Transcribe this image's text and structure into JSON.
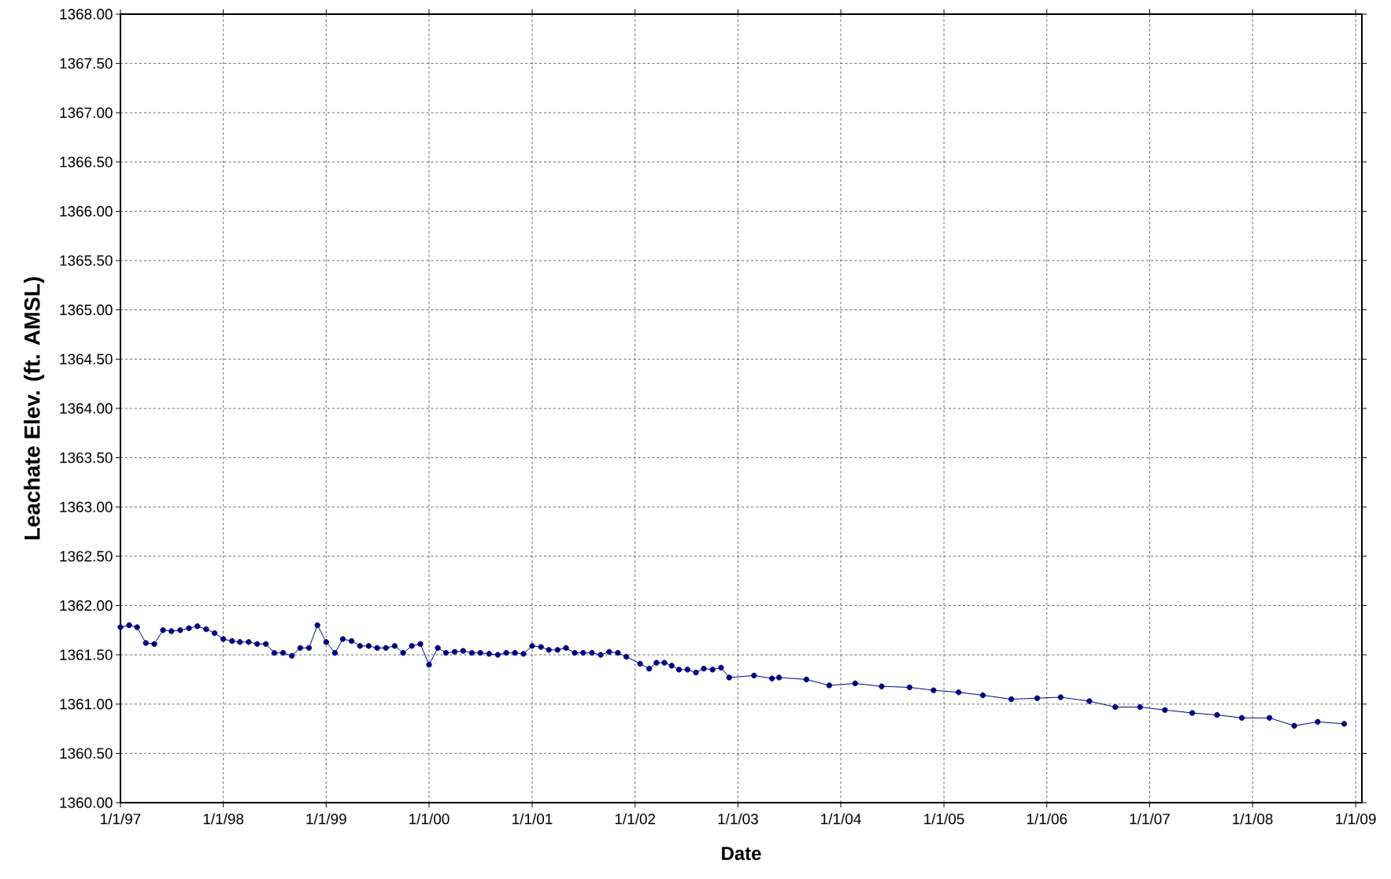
{
  "chart_data": {
    "type": "line",
    "xlabel": "Date",
    "ylabel": "Leachate Elev. (ft. AMSL)",
    "x": [
      "1997-01",
      "1997-02",
      "1997-03",
      "1997-04",
      "1997-05",
      "1997-06",
      "1997-07",
      "1997-08",
      "1997-09",
      "1997-10",
      "1997-11",
      "1997-12",
      "1998-01",
      "1998-02",
      "1998-03",
      "1998-04",
      "1998-05",
      "1998-06",
      "1998-07",
      "1998-08",
      "1998-09",
      "1998-10",
      "1998-11",
      "1998-12",
      "1999-01",
      "1999-02",
      "1999-03",
      "1999-04",
      "1999-05",
      "1999-06",
      "1999-07",
      "1999-08",
      "1999-09",
      "1999-10",
      "1999-11",
      "1999-12",
      "2000-01",
      "2000-02",
      "2000-03",
      "2000-04",
      "2000-05",
      "2000-06",
      "2000-07",
      "2000-08",
      "2000-09",
      "2000-10",
      "2000-11",
      "2000-12",
      "2001-01",
      "2001-02",
      "2001-03",
      "2001-04",
      "2001-05",
      "2001-06",
      "2001-07",
      "2001-08",
      "2001-09",
      "2001-10",
      "2001-11",
      "2001-12",
      "2002-01-19",
      "2002-02-20",
      "2002-03-18",
      "2002-04-15",
      "2002-05-11",
      "2002-06-06",
      "2002-07-06",
      "2002-08-05",
      "2002-09-02",
      "2002-10-03",
      "2002-11-02",
      "2002-12-01",
      "2003-02-27",
      "2003-05-02",
      "2003-05-27",
      "2003-09-01",
      "2003-11-21",
      "2004-02-21",
      "2004-05-25",
      "2004-09-01",
      "2004-11-25",
      "2005-02-22",
      "2005-05-19",
      "2005-08-28",
      "2005-11-28",
      "2006-02-19",
      "2006-06-01",
      "2006-09-01",
      "2006-11-28",
      "2007-02-24",
      "2007-06-01",
      "2007-08-28",
      "2007-11-24",
      "2008-03-01",
      "2008-05-28",
      "2008-08-19",
      "2008-11-21"
    ],
    "series": [
      {
        "color": "#000080",
        "values": [
          1361.78,
          1361.8,
          1361.78,
          1361.62,
          1361.61,
          1361.75,
          1361.74,
          1361.75,
          1361.77,
          1361.79,
          1361.76,
          1361.72,
          1361.66,
          1361.64,
          1361.63,
          1361.63,
          1361.61,
          1361.61,
          1361.52,
          1361.52,
          1361.49,
          1361.57,
          1361.57,
          1361.8,
          1361.63,
          1361.52,
          1361.66,
          1361.64,
          1361.59,
          1361.59,
          1361.57,
          1361.57,
          1361.59,
          1361.52,
          1361.59,
          1361.61,
          1361.4,
          1361.57,
          1361.52,
          1361.53,
          1361.54,
          1361.52,
          1361.52,
          1361.51,
          1361.5,
          1361.52,
          1361.52,
          1361.51,
          1361.59,
          1361.58,
          1361.55,
          1361.55,
          1361.57,
          1361.52,
          1361.52,
          1361.52,
          1361.5,
          1361.53,
          1361.52,
          1361.48,
          1361.41,
          1361.36,
          1361.42,
          1361.42,
          1361.39,
          1361.35,
          1361.35,
          1361.32,
          1361.36,
          1361.35,
          1361.37,
          1361.27,
          1361.29,
          1361.26,
          1361.27,
          1361.25,
          1361.19,
          1361.21,
          1361.18,
          1361.17,
          1361.14,
          1361.12,
          1361.09,
          1361.05,
          1361.06,
          1361.07,
          1361.03,
          1360.97,
          1360.97,
          1360.94,
          1360.91,
          1360.89,
          1360.86,
          1360.86,
          1360.78,
          1360.82,
          1360.8
        ]
      }
    ],
    "xlim": [
      "1997-01-01",
      "2009-01-23"
    ],
    "xticks": [
      {
        "value": "1997-01-01",
        "label": "1/1/97"
      },
      {
        "value": "1998-01-01",
        "label": "1/1/98"
      },
      {
        "value": "1999-01-01",
        "label": "1/1/99"
      },
      {
        "value": "2000-01-01",
        "label": "1/1/00"
      },
      {
        "value": "2001-01-01",
        "label": "1/1/01"
      },
      {
        "value": "2002-01-01",
        "label": "1/1/02"
      },
      {
        "value": "2003-01-01",
        "label": "1/1/03"
      },
      {
        "value": "2004-01-01",
        "label": "1/1/04"
      },
      {
        "value": "2005-01-01",
        "label": "1/1/05"
      },
      {
        "value": "2006-01-01",
        "label": "1/1/06"
      },
      {
        "value": "2007-01-01",
        "label": "1/1/07"
      },
      {
        "value": "2008-01-01",
        "label": "1/1/08"
      },
      {
        "value": "2009-01-01",
        "label": "1/1/09"
      }
    ],
    "ylim": [
      1360,
      1368
    ],
    "yticks": [
      {
        "value": 1360,
        "label": "1360.00"
      },
      {
        "value": 1360.5,
        "label": "1360.50"
      },
      {
        "value": 1361,
        "label": "1361.00"
      },
      {
        "value": 1361.5,
        "label": "1361.50"
      },
      {
        "value": 1362,
        "label": "1362.00"
      },
      {
        "value": 1362.5,
        "label": "1362.50"
      },
      {
        "value": 1363,
        "label": "1363.00"
      },
      {
        "value": 1363.5,
        "label": "1363.50"
      },
      {
        "value": 1364,
        "label": "1364.00"
      },
      {
        "value": 1364.5,
        "label": "1364.50"
      },
      {
        "value": 1365,
        "label": "1365.00"
      },
      {
        "value": 1365.5,
        "label": "1365.50"
      },
      {
        "value": 1366,
        "label": "1366.00"
      },
      {
        "value": 1366.5,
        "label": "1366.50"
      },
      {
        "value": 1367,
        "label": "1367.00"
      },
      {
        "value": 1367.5,
        "label": "1367.50"
      },
      {
        "value": 1368,
        "label": "1368.00"
      }
    ],
    "grid": true,
    "marker": "circle",
    "line_style": "solid"
  }
}
